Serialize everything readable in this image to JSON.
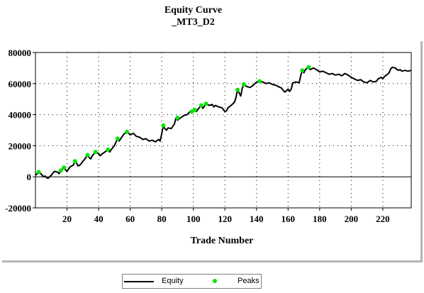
{
  "chart_data": {
    "type": "line",
    "title": [
      "Equity Curve",
      "_MT3_D2"
    ],
    "xlabel": "Trade Number",
    "ylabel": "",
    "xlim": [
      0,
      238
    ],
    "ylim": [
      -20000,
      80000
    ],
    "x_ticks": [
      20,
      40,
      60,
      80,
      100,
      120,
      140,
      160,
      180,
      200,
      220
    ],
    "y_ticks": [
      -20000,
      0,
      20000,
      40000,
      60000,
      80000
    ],
    "grid": true,
    "legend_position": "bottom",
    "series": [
      {
        "name": "Equity",
        "color": "#000000",
        "points": [
          [
            0,
            1000
          ],
          [
            2,
            3000
          ],
          [
            4,
            1500
          ],
          [
            5,
            0
          ],
          [
            6,
            500
          ],
          [
            7,
            -500
          ],
          [
            8,
            -1000
          ],
          [
            9,
            0
          ],
          [
            10,
            1000
          ],
          [
            12,
            3500
          ],
          [
            14,
            3000
          ],
          [
            15,
            2000
          ],
          [
            16,
            4000
          ],
          [
            18,
            6000
          ],
          [
            19,
            4500
          ],
          [
            20,
            3500
          ],
          [
            22,
            6500
          ],
          [
            24,
            7500
          ],
          [
            25,
            10000
          ],
          [
            26,
            9000
          ],
          [
            27,
            7000
          ],
          [
            28,
            7500
          ],
          [
            29,
            8500
          ],
          [
            30,
            10000
          ],
          [
            31,
            11000
          ],
          [
            33,
            14000
          ],
          [
            34,
            12500
          ],
          [
            35,
            11500
          ],
          [
            36,
            13500
          ],
          [
            38,
            16000
          ],
          [
            40,
            15000
          ],
          [
            41,
            13500
          ],
          [
            42,
            14500
          ],
          [
            44,
            16000
          ],
          [
            46,
            17500
          ],
          [
            47,
            16000
          ],
          [
            48,
            17500
          ],
          [
            50,
            20000
          ],
          [
            52,
            24500
          ],
          [
            53,
            23000
          ],
          [
            54,
            24500
          ],
          [
            56,
            27500
          ],
          [
            58,
            29000
          ],
          [
            60,
            27000
          ],
          [
            62,
            28000
          ],
          [
            64,
            26000
          ],
          [
            66,
            25500
          ],
          [
            68,
            24000
          ],
          [
            70,
            24500
          ],
          [
            72,
            23000
          ],
          [
            74,
            23500
          ],
          [
            76,
            22500
          ],
          [
            78,
            24000
          ],
          [
            79,
            23000
          ],
          [
            80,
            28000
          ],
          [
            81,
            33000
          ],
          [
            82,
            31000
          ],
          [
            83,
            30000
          ],
          [
            84,
            31500
          ],
          [
            86,
            31000
          ],
          [
            88,
            34000
          ],
          [
            89,
            38000
          ],
          [
            90,
            36500
          ],
          [
            92,
            38000
          ],
          [
            94,
            39500
          ],
          [
            96,
            40000
          ],
          [
            98,
            42000
          ],
          [
            99,
            41000
          ],
          [
            100,
            43000
          ],
          [
            102,
            42000
          ],
          [
            103,
            43500
          ],
          [
            105,
            46000
          ],
          [
            106,
            44000
          ],
          [
            108,
            47000
          ],
          [
            110,
            46000
          ],
          [
            112,
            46500
          ],
          [
            113,
            45000
          ],
          [
            114,
            46000
          ],
          [
            116,
            45000
          ],
          [
            118,
            44500
          ],
          [
            120,
            42000
          ],
          [
            121,
            42500
          ],
          [
            122,
            44500
          ],
          [
            124,
            46000
          ],
          [
            126,
            48000
          ],
          [
            127,
            51000
          ],
          [
            128,
            56000
          ],
          [
            129,
            54000
          ],
          [
            130,
            52000
          ],
          [
            131,
            57000
          ],
          [
            132,
            59500
          ],
          [
            134,
            58000
          ],
          [
            136,
            57500
          ],
          [
            138,
            59000
          ],
          [
            140,
            61000
          ],
          [
            142,
            61500
          ],
          [
            144,
            61000
          ],
          [
            146,
            60000
          ],
          [
            148,
            60500
          ],
          [
            150,
            59500
          ],
          [
            152,
            59000
          ],
          [
            154,
            58000
          ],
          [
            156,
            57000
          ],
          [
            157,
            55500
          ],
          [
            158,
            54500
          ],
          [
            159,
            55500
          ],
          [
            160,
            56500
          ],
          [
            161,
            55000
          ],
          [
            162,
            56500
          ],
          [
            163,
            60500
          ],
          [
            165,
            61000
          ],
          [
            167,
            60500
          ],
          [
            168,
            65000
          ],
          [
            169,
            68500
          ],
          [
            170,
            67000
          ],
          [
            171,
            69000
          ],
          [
            173,
            70500
          ],
          [
            174,
            69000
          ],
          [
            176,
            70000
          ],
          [
            178,
            69000
          ],
          [
            180,
            67500
          ],
          [
            182,
            68000
          ],
          [
            184,
            67000
          ],
          [
            186,
            66000
          ],
          [
            188,
            66500
          ],
          [
            190,
            65500
          ],
          [
            192,
            66000
          ],
          [
            194,
            65000
          ],
          [
            196,
            66500
          ],
          [
            198,
            65500
          ],
          [
            200,
            64000
          ],
          [
            202,
            63000
          ],
          [
            204,
            62000
          ],
          [
            206,
            62500
          ],
          [
            208,
            61000
          ],
          [
            210,
            60500
          ],
          [
            212,
            62000
          ],
          [
            214,
            61000
          ],
          [
            216,
            61500
          ],
          [
            217,
            63000
          ],
          [
            219,
            64000
          ],
          [
            220,
            63000
          ],
          [
            221,
            64500
          ],
          [
            223,
            66000
          ],
          [
            224,
            67000
          ],
          [
            225,
            69500
          ],
          [
            226,
            70500
          ],
          [
            228,
            70000
          ],
          [
            229,
            69000
          ],
          [
            230,
            68500
          ],
          [
            231,
            69000
          ],
          [
            232,
            68000
          ],
          [
            234,
            68500
          ],
          [
            236,
            68000
          ],
          [
            238,
            68500
          ]
        ]
      },
      {
        "name": "Peaks",
        "color": "#00e600",
        "points": [
          [
            2,
            3000
          ],
          [
            16,
            4000
          ],
          [
            18,
            6000
          ],
          [
            25,
            10000
          ],
          [
            33,
            14000
          ],
          [
            38,
            16000
          ],
          [
            46,
            17500
          ],
          [
            52,
            24500
          ],
          [
            58,
            29000
          ],
          [
            81,
            33000
          ],
          [
            90,
            38000
          ],
          [
            99,
            42000
          ],
          [
            101,
            43000
          ],
          [
            105,
            46000
          ],
          [
            108,
            47000
          ],
          [
            128,
            56000
          ],
          [
            132,
            59500
          ],
          [
            142,
            61500
          ],
          [
            169,
            68500
          ],
          [
            173,
            70500
          ]
        ]
      }
    ]
  }
}
